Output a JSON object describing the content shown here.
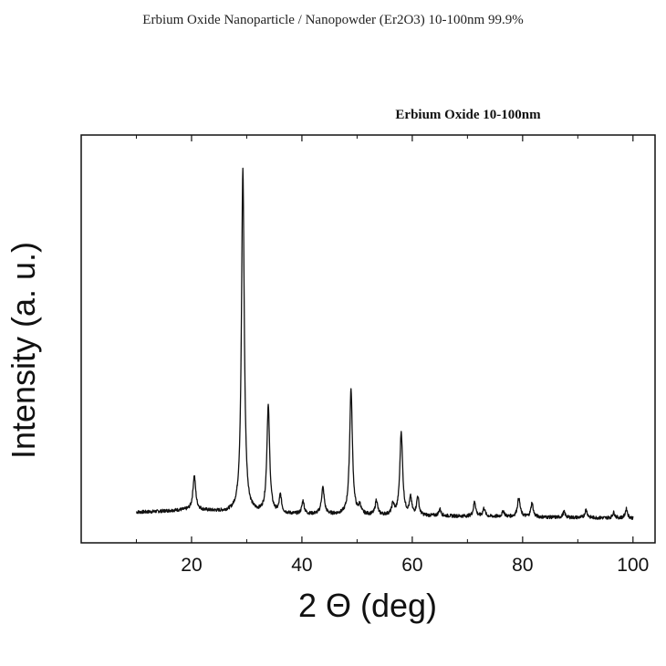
{
  "page_title": "Erbium Oxide Nanoparticle / Nanopowder (Er2O3)  10-100nm  99.9%",
  "chart_data": {
    "type": "line",
    "title": "Erbium Oxide  10-100nm",
    "xlabel": "2 Θ (deg)",
    "ylabel": "Intensity (a. u.)",
    "xlim": [
      0,
      104
    ],
    "ylim": [
      0,
      1000
    ],
    "x_ticks": [
      20,
      40,
      60,
      80,
      100
    ],
    "grid": false,
    "background": {
      "start": [
        10,
        28
      ],
      "end": [
        100,
        12
      ]
    },
    "peaks": [
      {
        "x": 20.5,
        "height": 92,
        "width": 0.3
      },
      {
        "x": 29.3,
        "height": 930,
        "width": 0.3
      },
      {
        "x": 33.9,
        "height": 290,
        "width": 0.3
      },
      {
        "x": 36.1,
        "height": 48,
        "width": 0.25
      },
      {
        "x": 40.2,
        "height": 35,
        "width": 0.25
      },
      {
        "x": 43.8,
        "height": 72,
        "width": 0.3
      },
      {
        "x": 48.9,
        "height": 340,
        "width": 0.3
      },
      {
        "x": 50.5,
        "height": 22,
        "width": 0.25
      },
      {
        "x": 53.5,
        "height": 40,
        "width": 0.25
      },
      {
        "x": 56.5,
        "height": 28,
        "width": 0.25
      },
      {
        "x": 58.0,
        "height": 225,
        "width": 0.3
      },
      {
        "x": 59.7,
        "height": 45,
        "width": 0.25
      },
      {
        "x": 61.0,
        "height": 50,
        "width": 0.25
      },
      {
        "x": 65.0,
        "height": 18,
        "width": 0.25
      },
      {
        "x": 71.3,
        "height": 40,
        "width": 0.25
      },
      {
        "x": 73.0,
        "height": 22,
        "width": 0.25
      },
      {
        "x": 76.5,
        "height": 15,
        "width": 0.25
      },
      {
        "x": 79.3,
        "height": 50,
        "width": 0.3
      },
      {
        "x": 81.7,
        "height": 38,
        "width": 0.25
      },
      {
        "x": 87.5,
        "height": 15,
        "width": 0.25
      },
      {
        "x": 91.5,
        "height": 22,
        "width": 0.25
      },
      {
        "x": 96.5,
        "height": 15,
        "width": 0.25
      },
      {
        "x": 98.8,
        "height": 25,
        "width": 0.25
      }
    ],
    "line_color": "#111111"
  }
}
